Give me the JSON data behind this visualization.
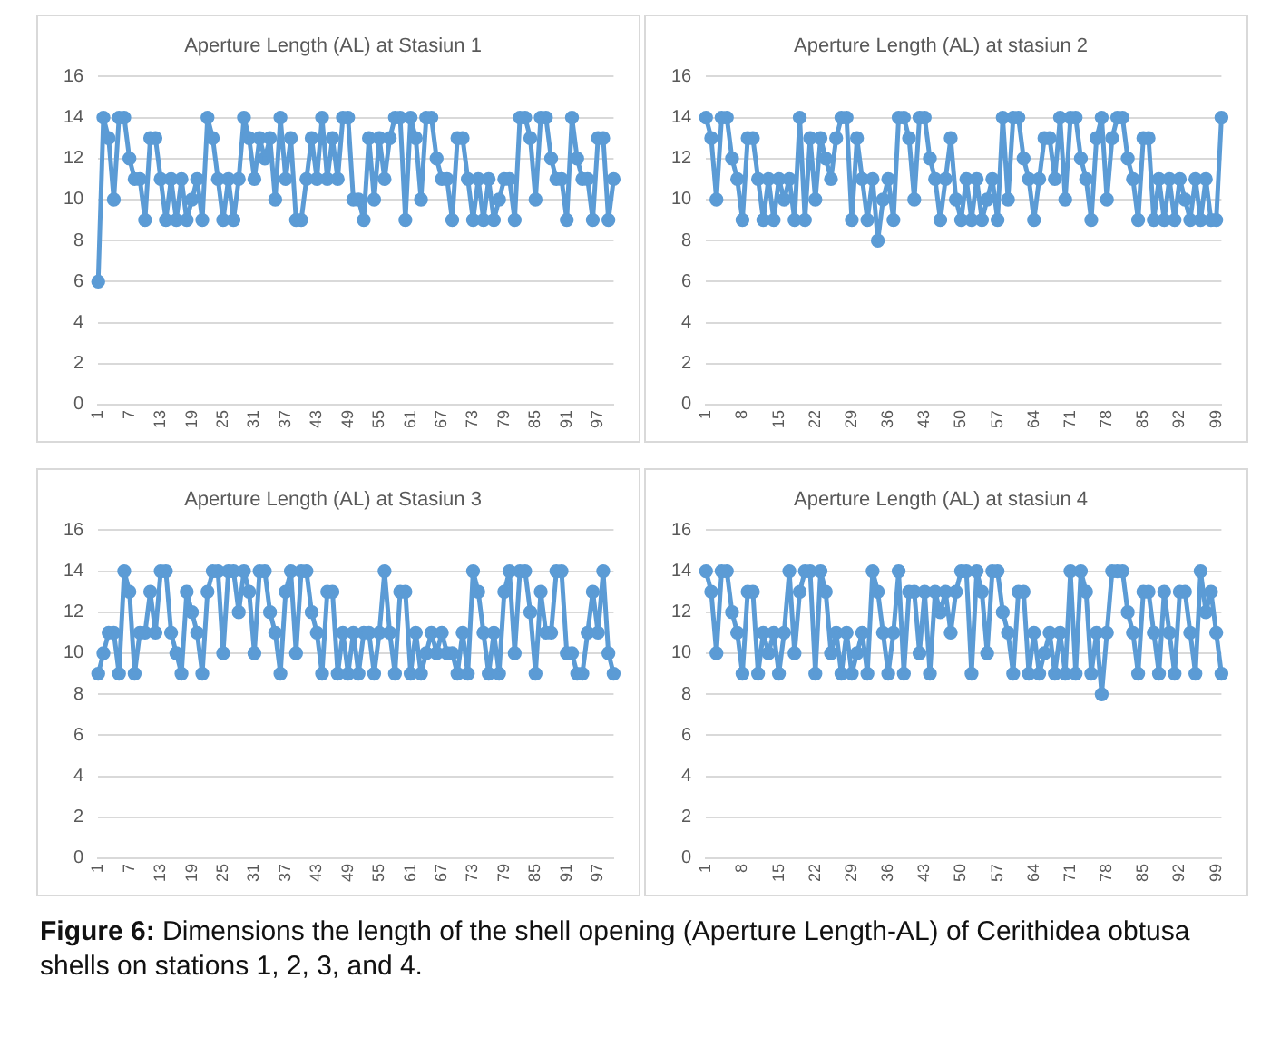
{
  "chart_data": [
    {
      "type": "line",
      "title": "Aperture Length (AL) at Stasiun 1",
      "categories": [
        "1",
        null,
        null,
        null,
        null,
        null,
        "7",
        null,
        null,
        null,
        null,
        null,
        "13",
        null,
        null,
        null,
        null,
        null,
        "19",
        null,
        null,
        null,
        null,
        null,
        "25",
        null,
        null,
        null,
        null,
        null,
        "31",
        null,
        null,
        null,
        null,
        null,
        "37",
        null,
        null,
        null,
        null,
        null,
        "43",
        null,
        null,
        null,
        null,
        null,
        "49",
        null,
        null,
        null,
        null,
        null,
        "55",
        null,
        null,
        null,
        null,
        null,
        "61",
        null,
        null,
        null,
        null,
        null,
        "67",
        null,
        null,
        null,
        null,
        null,
        "73",
        null,
        null,
        null,
        null,
        null,
        "79",
        null,
        null,
        null,
        null,
        null,
        "85",
        null,
        null,
        null,
        null,
        null,
        "91",
        null,
        null,
        null,
        null,
        null,
        "97",
        null,
        null,
        null
      ],
      "series": [
        {
          "color": "#5b9bd5",
          "values": [
            6,
            14,
            13,
            10,
            14,
            14,
            12,
            11,
            11,
            9,
            13,
            13,
            11,
            9,
            11,
            9,
            11,
            9,
            10,
            11,
            9,
            14,
            13,
            11,
            9,
            11,
            9,
            11,
            14,
            13,
            11,
            13,
            12,
            13,
            10,
            14,
            11,
            13,
            9,
            9,
            11,
            13,
            11,
            14,
            11,
            13,
            11,
            14,
            14,
            10,
            10,
            9,
            13,
            10,
            13,
            11,
            13,
            14,
            14,
            9,
            14,
            13,
            10,
            14,
            14,
            12,
            11,
            11,
            9,
            13,
            13,
            11,
            9,
            11,
            9,
            11,
            9,
            10,
            11,
            11,
            9,
            14,
            14,
            13,
            10,
            14,
            14,
            12,
            11,
            11,
            9,
            14,
            12,
            11,
            11,
            9,
            13,
            13,
            9,
            11
          ]
        }
      ],
      "ylim": [
        0,
        16
      ],
      "yticks": [
        0,
        2,
        4,
        6,
        8,
        10,
        12,
        14,
        16
      ],
      "grid": "y",
      "legend": false,
      "marker": "circle",
      "line_style": "solid"
    },
    {
      "type": "line",
      "title": "Aperture Length (AL) at stasiun 2",
      "categories": [
        "1",
        null,
        null,
        null,
        null,
        null,
        null,
        "8",
        null,
        null,
        null,
        null,
        null,
        null,
        "15",
        null,
        null,
        null,
        null,
        null,
        null,
        "22",
        null,
        null,
        null,
        null,
        null,
        null,
        "29",
        null,
        null,
        null,
        null,
        null,
        null,
        "36",
        null,
        null,
        null,
        null,
        null,
        null,
        "43",
        null,
        null,
        null,
        null,
        null,
        null,
        "50",
        null,
        null,
        null,
        null,
        null,
        null,
        "57",
        null,
        null,
        null,
        null,
        null,
        null,
        "64",
        null,
        null,
        null,
        null,
        null,
        null,
        "71",
        null,
        null,
        null,
        null,
        null,
        null,
        "78",
        null,
        null,
        null,
        null,
        null,
        null,
        "85",
        null,
        null,
        null,
        null,
        null,
        null,
        "92",
        null,
        null,
        null,
        null,
        null,
        null,
        "99",
        null
      ],
      "series": [
        {
          "color": "#5b9bd5",
          "values": [
            14,
            13,
            10,
            14,
            14,
            12,
            11,
            9,
            13,
            13,
            11,
            9,
            11,
            9,
            11,
            10,
            11,
            9,
            14,
            9,
            13,
            10,
            13,
            12,
            11,
            13,
            14,
            14,
            9,
            13,
            11,
            9,
            11,
            8,
            10,
            11,
            9,
            14,
            14,
            13,
            10,
            14,
            14,
            12,
            11,
            9,
            11,
            13,
            10,
            9,
            11,
            9,
            11,
            9,
            10,
            11,
            9,
            14,
            10,
            14,
            14,
            12,
            11,
            9,
            11,
            13,
            13,
            11,
            14,
            10,
            14,
            14,
            12,
            11,
            9,
            13,
            14,
            10,
            13,
            14,
            14,
            12,
            11,
            9,
            13,
            13,
            9,
            11,
            9,
            11,
            9,
            11,
            10,
            9,
            11,
            9,
            11,
            9,
            9,
            14
          ]
        }
      ],
      "ylim": [
        0,
        16
      ],
      "yticks": [
        0,
        2,
        4,
        6,
        8,
        10,
        12,
        14,
        16
      ],
      "grid": "y",
      "legend": false,
      "marker": "circle",
      "line_style": "solid"
    },
    {
      "type": "line",
      "title": "Aperture Length (AL) at Stasiun 3",
      "categories": [
        "1",
        null,
        null,
        null,
        null,
        null,
        "7",
        null,
        null,
        null,
        null,
        null,
        "13",
        null,
        null,
        null,
        null,
        null,
        "19",
        null,
        null,
        null,
        null,
        null,
        "25",
        null,
        null,
        null,
        null,
        null,
        "31",
        null,
        null,
        null,
        null,
        null,
        "37",
        null,
        null,
        null,
        null,
        null,
        "43",
        null,
        null,
        null,
        null,
        null,
        "49",
        null,
        null,
        null,
        null,
        null,
        "55",
        null,
        null,
        null,
        null,
        null,
        "61",
        null,
        null,
        null,
        null,
        null,
        "67",
        null,
        null,
        null,
        null,
        null,
        "73",
        null,
        null,
        null,
        null,
        null,
        "79",
        null,
        null,
        null,
        null,
        null,
        "85",
        null,
        null,
        null,
        null,
        null,
        "91",
        null,
        null,
        null,
        null,
        null,
        "97",
        null,
        null,
        null
      ],
      "series": [
        {
          "color": "#5b9bd5",
          "values": [
            9,
            10,
            11,
            11,
            9,
            14,
            13,
            9,
            11,
            11,
            13,
            11,
            14,
            14,
            11,
            10,
            9,
            13,
            12,
            11,
            9,
            13,
            14,
            14,
            10,
            14,
            14,
            12,
            14,
            13,
            10,
            14,
            14,
            12,
            11,
            9,
            13,
            14,
            10,
            14,
            14,
            12,
            11,
            9,
            13,
            13,
            9,
            11,
            9,
            11,
            9,
            11,
            11,
            9,
            11,
            14,
            11,
            9,
            13,
            13,
            9,
            11,
            9,
            10,
            11,
            10,
            11,
            10,
            10,
            9,
            11,
            9,
            14,
            13,
            11,
            9,
            11,
            9,
            13,
            14,
            10,
            14,
            14,
            12,
            9,
            13,
            11,
            11,
            14,
            14,
            10,
            10,
            9,
            9,
            11,
            13,
            11,
            14,
            10,
            9
          ]
        }
      ],
      "ylim": [
        0,
        16
      ],
      "yticks": [
        0,
        2,
        4,
        6,
        8,
        10,
        12,
        14,
        16
      ],
      "grid": "y",
      "legend": false,
      "marker": "circle",
      "line_style": "solid"
    },
    {
      "type": "line",
      "title": "Aperture Length (AL) at stasiun 4",
      "categories": [
        "1",
        null,
        null,
        null,
        null,
        null,
        null,
        "8",
        null,
        null,
        null,
        null,
        null,
        null,
        "15",
        null,
        null,
        null,
        null,
        null,
        null,
        "22",
        null,
        null,
        null,
        null,
        null,
        null,
        "29",
        null,
        null,
        null,
        null,
        null,
        null,
        "36",
        null,
        null,
        null,
        null,
        null,
        null,
        "43",
        null,
        null,
        null,
        null,
        null,
        null,
        "50",
        null,
        null,
        null,
        null,
        null,
        null,
        "57",
        null,
        null,
        null,
        null,
        null,
        null,
        "64",
        null,
        null,
        null,
        null,
        null,
        null,
        "71",
        null,
        null,
        null,
        null,
        null,
        null,
        "78",
        null,
        null,
        null,
        null,
        null,
        null,
        "85",
        null,
        null,
        null,
        null,
        null,
        null,
        "92",
        null,
        null,
        null,
        null,
        null,
        null,
        "99",
        null
      ],
      "series": [
        {
          "color": "#5b9bd5",
          "values": [
            14,
            13,
            10,
            14,
            14,
            12,
            11,
            9,
            13,
            13,
            9,
            11,
            10,
            11,
            9,
            11,
            14,
            10,
            13,
            14,
            14,
            9,
            14,
            13,
            10,
            11,
            9,
            11,
            9,
            10,
            11,
            9,
            14,
            13,
            11,
            9,
            11,
            14,
            9,
            13,
            13,
            10,
            13,
            9,
            13,
            12,
            13,
            11,
            13,
            14,
            14,
            9,
            14,
            13,
            10,
            14,
            14,
            12,
            11,
            9,
            13,
            13,
            9,
            11,
            9,
            10,
            11,
            9,
            11,
            9,
            14,
            9,
            14,
            13,
            9,
            11,
            8,
            11,
            14,
            14,
            14,
            12,
            11,
            9,
            13,
            13,
            11,
            9,
            13,
            11,
            9,
            13,
            13,
            11,
            9,
            14,
            12,
            13,
            11,
            9
          ]
        }
      ],
      "ylim": [
        0,
        16
      ],
      "yticks": [
        0,
        2,
        4,
        6,
        8,
        10,
        12,
        14,
        16
      ],
      "grid": "y",
      "legend": false,
      "marker": "circle",
      "line_style": "solid",
      "annotations": [
        "Figure 6: Dimensions the length of the shell opening (Aperture Length-AL) of Cerithidea obtusa shells on stations 1, 2, 3, and 4."
      ]
    }
  ]
}
